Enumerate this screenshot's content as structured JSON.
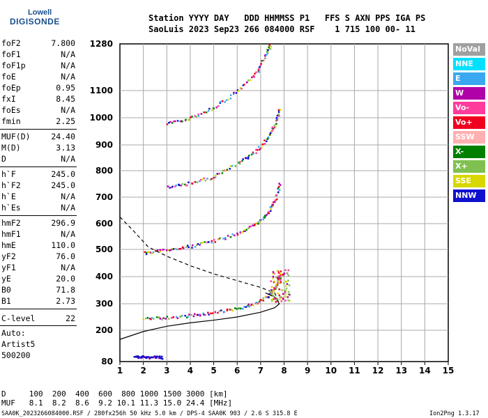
{
  "logo": {
    "line1": "Lowell",
    "line2": "DIGISONDE"
  },
  "header": {
    "line1": "Station YYYY DAY   DDD HHMMSS P1   FFS S AXN PPS IGA PS",
    "line2": "SaoLuis 2023 Sep23 266 084000 RSF    1 715 100 00- 11"
  },
  "params_group1": [
    {
      "name": "foF2",
      "value": "7.800"
    },
    {
      "name": "foF1",
      "value": "N/A"
    },
    {
      "name": "foF1p",
      "value": "N/A"
    },
    {
      "name": "foE",
      "value": "N/A"
    },
    {
      "name": "foEp",
      "value": "0.95"
    },
    {
      "name": "fxI",
      "value": "8.45"
    },
    {
      "name": "foEs",
      "value": "N/A"
    },
    {
      "name": "fmin",
      "value": "2.25"
    }
  ],
  "params_group2": [
    {
      "name": "MUF(D)",
      "value": "24.40"
    },
    {
      "name": "M(D)",
      "value": "3.13"
    },
    {
      "name": "D",
      "value": "N/A"
    }
  ],
  "params_group3": [
    {
      "name": "h`F",
      "value": "245.0"
    },
    {
      "name": "h`F2",
      "value": "245.0"
    },
    {
      "name": "h`E",
      "value": "N/A"
    },
    {
      "name": "h`Es",
      "value": "N/A"
    }
  ],
  "params_group4": [
    {
      "name": "hmF2",
      "value": "296.9"
    },
    {
      "name": "hmF1",
      "value": "N/A"
    },
    {
      "name": "hmE",
      "value": "110.0"
    },
    {
      "name": "yF2",
      "value": "76.0"
    },
    {
      "name": "yF1",
      "value": "N/A"
    },
    {
      "name": "yE",
      "value": "20.0"
    },
    {
      "name": "B0",
      "value": "71.8"
    },
    {
      "name": "B1",
      "value": "2.73"
    }
  ],
  "clevel": {
    "name": "C-level",
    "value": "22"
  },
  "auto": {
    "line1": "Auto:",
    "line2": "Artist5",
    "line3": "500200"
  },
  "legend": [
    {
      "label": "NoVal",
      "color": "#a0a0a0"
    },
    {
      "label": "NNE",
      "color": "#00e0ff"
    },
    {
      "label": "E",
      "color": "#3aa8f0"
    },
    {
      "label": "W",
      "color": "#b000a8"
    },
    {
      "label": "Vo-",
      "color": "#ff3c9c"
    },
    {
      "label": "Vo+",
      "color": "#f0001e"
    },
    {
      "label": "SSW",
      "color": "#ffb0b0"
    },
    {
      "label": "X-",
      "color": "#008000"
    },
    {
      "label": "X+",
      "color": "#80c050"
    },
    {
      "label": "SSE",
      "color": "#d8d800"
    },
    {
      "label": "NNW",
      "color": "#1010d0"
    }
  ],
  "muf_table": {
    "d_line": "D     100  200  400  600  800 1000 1500 3000 [km]",
    "muf_line": "MUF   8.1  8.2  8.6  9.2 10.1 11.3 15.0 24.4 [MHz]"
  },
  "footer": {
    "left": "SAA0K_2023266084000.RSF / 280fx256h 50 kHz 5.0 km / DPS-4 SAA0K 903 / 2.6 S 315.8 E",
    "right": "Ion2Png 1.3.17"
  },
  "chart_data": {
    "type": "scatter",
    "title": "",
    "xlabel": "",
    "ylabel": "",
    "xlim": [
      1,
      15
    ],
    "ylim": [
      80,
      1280
    ],
    "x_ticks": [
      1,
      2,
      3,
      4,
      5,
      6,
      7,
      8,
      9,
      10,
      11,
      12,
      13,
      14,
      15
    ],
    "y_ticks": [
      80,
      200,
      300,
      400,
      500,
      600,
      700,
      800,
      900,
      1000,
      1100,
      1280
    ],
    "y_scale": "nonlinear",
    "grid": true,
    "traces": [
      {
        "name": "O-trace F2 (1 hop)",
        "color": "#f0001e",
        "x": [
          2.0,
          3.0,
          4.0,
          5.0,
          6.0,
          6.8,
          7.3,
          7.6,
          7.8
        ],
        "y": [
          245,
          250,
          258,
          268,
          285,
          305,
          330,
          360,
          400
        ]
      },
      {
        "name": "O-trace F2 (2 hop)",
        "color": "#f0001e",
        "x": [
          2.0,
          3.0,
          4.0,
          5.0,
          6.0,
          6.8,
          7.3,
          7.6,
          7.8
        ],
        "y": [
          490,
          500,
          515,
          535,
          565,
          600,
          645,
          690,
          760
        ]
      },
      {
        "name": "O-trace F2 (3 hop)",
        "color": "#f0001e",
        "x": [
          3.0,
          4.0,
          5.0,
          6.0,
          6.8,
          7.3,
          7.6,
          7.8
        ],
        "y": [
          740,
          755,
          780,
          830,
          880,
          930,
          980,
          1040
        ]
      },
      {
        "name": "O-trace F2 (4 hop)",
        "color": "#f0001e",
        "x": [
          3.0,
          4.0,
          5.0,
          6.0,
          6.8,
          7.2,
          7.4
        ],
        "y": [
          980,
          1000,
          1040,
          1100,
          1170,
          1240,
          1280
        ]
      },
      {
        "name": "Es / E echo",
        "color": "#1010d0",
        "x": [
          1.6,
          2.0,
          2.4,
          2.8
        ],
        "y": [
          100,
          100,
          99,
          98
        ]
      },
      {
        "name": "model profile",
        "color": "#000000",
        "x": [
          1.0,
          2.0,
          3.0,
          4.0,
          5.0,
          6.0,
          7.0,
          7.6,
          7.8,
          7.6,
          7.2
        ],
        "y": [
          165,
          195,
          215,
          228,
          238,
          250,
          268,
          285,
          300,
          325,
          340
        ]
      },
      {
        "name": "model profile 2-hop",
        "color": "#000000",
        "x": [
          1.0,
          1.6,
          2.2,
          3.0,
          4.0,
          5.0,
          6.0,
          7.0,
          7.6,
          7.8
        ],
        "y": [
          625,
          570,
          510,
          475,
          440,
          410,
          385,
          360,
          340,
          300
        ]
      }
    ]
  }
}
